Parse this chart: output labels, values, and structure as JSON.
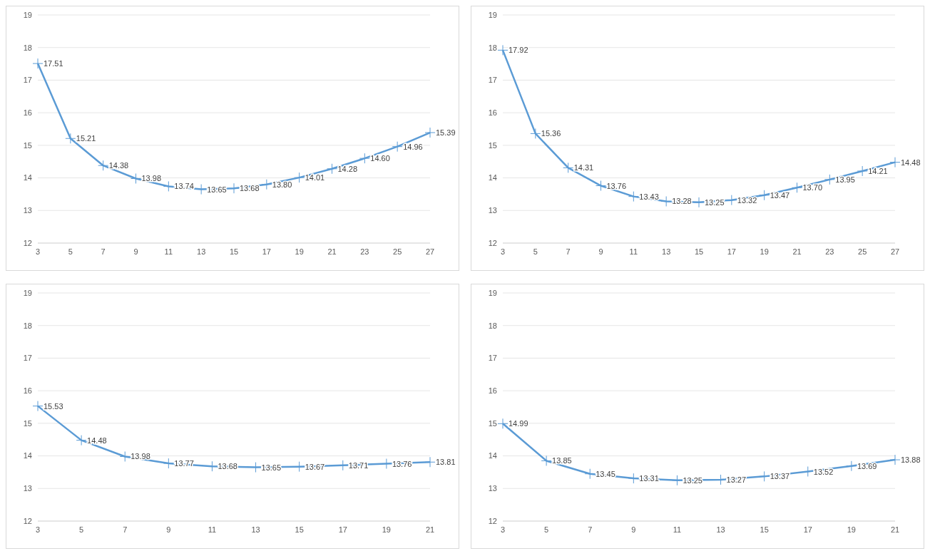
{
  "chart_data": [
    {
      "type": "line",
      "categories": [
        "3",
        "5",
        "7",
        "9",
        "11",
        "13",
        "15",
        "17",
        "19",
        "21",
        "23",
        "25",
        "27"
      ],
      "series": [
        {
          "color": "#5b9bd5",
          "values": [
            17.51,
            15.21,
            14.38,
            13.98,
            13.74,
            13.65,
            13.68,
            13.8,
            14.01,
            14.28,
            14.6,
            14.96,
            15.39
          ],
          "value_labels": [
            "17.51",
            "15.21",
            "14.38",
            "13.98",
            "13.74",
            "13.65",
            "13.68",
            "13.80",
            "14.01",
            "14.28",
            "14.60",
            "14.96",
            "15.39"
          ]
        }
      ],
      "ylim": [
        12,
        19
      ],
      "yticks": [
        12,
        13,
        14,
        15,
        16,
        17,
        18,
        19
      ],
      "grid": "y",
      "marker": "cross",
      "line_style": "solid"
    },
    {
      "type": "line",
      "categories": [
        "3",
        "5",
        "7",
        "9",
        "11",
        "13",
        "15",
        "17",
        "19",
        "21",
        "23",
        "25",
        "27"
      ],
      "series": [
        {
          "color": "#5b9bd5",
          "values": [
            17.92,
            15.36,
            14.31,
            13.76,
            13.43,
            13.28,
            13.25,
            13.32,
            13.47,
            13.7,
            13.95,
            14.21,
            14.48
          ],
          "value_labels": [
            "17.92",
            "15.36",
            "14.31",
            "13.76",
            "13.43",
            "13.28",
            "13.25",
            "13.32",
            "13.47",
            "13.70",
            "13.95",
            "14.21",
            "14.48"
          ]
        }
      ],
      "ylim": [
        12,
        19
      ],
      "yticks": [
        12,
        13,
        14,
        15,
        16,
        17,
        18,
        19
      ],
      "grid": "y",
      "marker": "cross",
      "line_style": "solid"
    },
    {
      "type": "line",
      "categories": [
        "3",
        "5",
        "7",
        "9",
        "11",
        "13",
        "15",
        "17",
        "19",
        "21"
      ],
      "series": [
        {
          "color": "#5b9bd5",
          "values": [
            15.53,
            14.48,
            13.98,
            13.77,
            13.68,
            13.65,
            13.67,
            13.71,
            13.76,
            13.81
          ],
          "value_labels": [
            "15.53",
            "14.48",
            "13.98",
            "13.77",
            "13.68",
            "13.65",
            "13.67",
            "13.71",
            "13.76",
            "13.81"
          ]
        }
      ],
      "ylim": [
        12,
        19
      ],
      "yticks": [
        12,
        13,
        14,
        15,
        16,
        17,
        18,
        19
      ],
      "grid": "y",
      "marker": "cross",
      "line_style": "solid"
    },
    {
      "type": "line",
      "categories": [
        "3",
        "5",
        "7",
        "9",
        "11",
        "13",
        "15",
        "17",
        "19",
        "21"
      ],
      "series": [
        {
          "color": "#5b9bd5",
          "values": [
            14.99,
            13.85,
            13.45,
            13.31,
            13.25,
            13.27,
            13.37,
            13.52,
            13.69,
            13.88
          ],
          "value_labels": [
            "14.99",
            "13.85",
            "13.45",
            "13.31",
            "13.25",
            "13.27",
            "13.37",
            "13.52",
            "13.69",
            "13.88"
          ]
        }
      ],
      "ylim": [
        12,
        19
      ],
      "yticks": [
        12,
        13,
        14,
        15,
        16,
        17,
        18,
        19
      ],
      "grid": "y",
      "marker": "cross",
      "line_style": "solid"
    }
  ]
}
